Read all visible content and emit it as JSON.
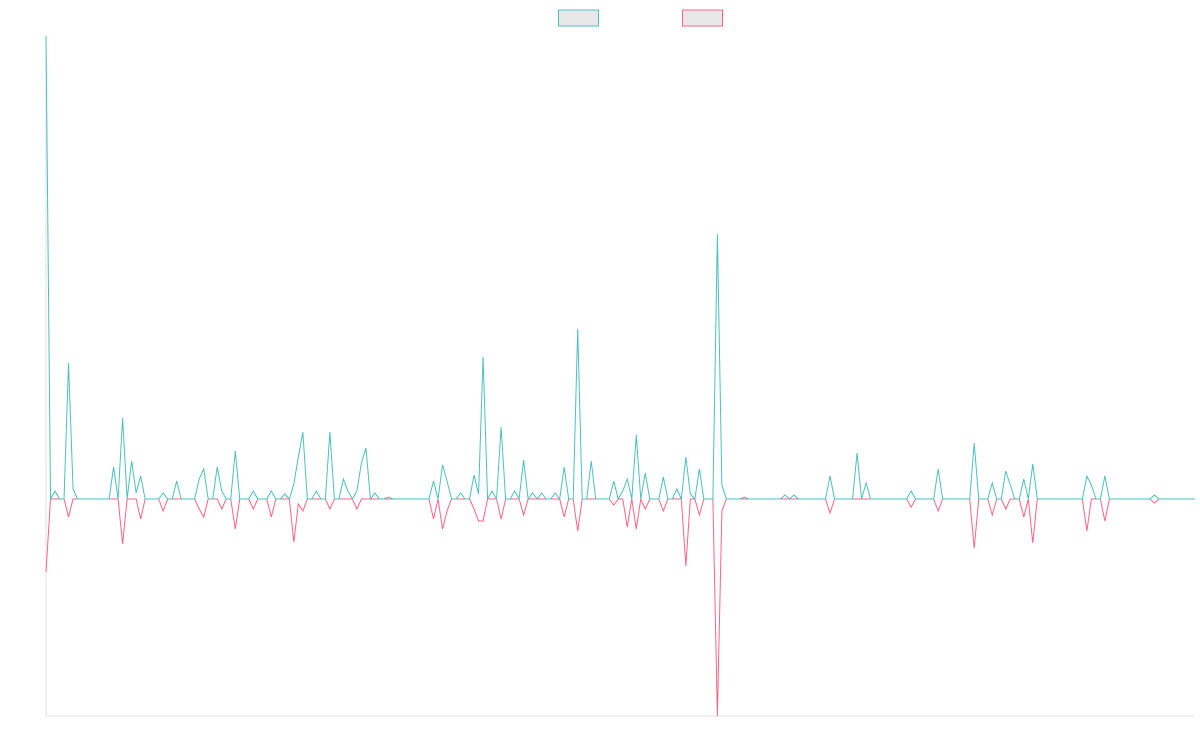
{
  "chart_data": {
    "type": "line",
    "ylim": [
      -217,
      463
    ],
    "legend": "top",
    "series": [
      {
        "color": "#4bc0c0",
        "values": [
          463,
          0,
          8,
          0,
          0,
          136,
          10,
          0,
          0,
          0,
          0,
          0,
          0,
          0,
          0,
          32,
          0,
          81,
          0,
          38,
          6,
          23,
          0,
          0,
          0,
          0,
          6,
          0,
          0,
          18,
          0,
          0,
          0,
          0,
          20,
          30,
          0,
          0,
          32,
          8,
          0,
          0,
          48,
          0,
          0,
          0,
          8,
          0,
          0,
          0,
          8,
          0,
          0,
          5,
          0,
          15,
          42,
          67,
          0,
          0,
          8,
          0,
          0,
          67,
          0,
          0,
          20,
          8,
          0,
          8,
          36,
          51,
          0,
          6,
          0,
          0,
          2,
          0,
          0,
          0,
          0,
          0,
          0,
          0,
          0,
          0,
          18,
          0,
          34,
          18,
          0,
          0,
          6,
          0,
          0,
          24,
          5,
          142,
          0,
          8,
          0,
          72,
          0,
          0,
          8,
          0,
          39,
          0,
          6,
          0,
          6,
          0,
          0,
          6,
          0,
          32,
          0,
          0,
          170,
          0,
          0,
          38,
          0,
          0,
          0,
          0,
          18,
          0,
          8,
          20,
          0,
          64,
          0,
          26,
          0,
          0,
          0,
          22,
          0,
          0,
          10,
          0,
          42,
          5,
          0,
          30,
          0,
          0,
          0,
          265,
          14,
          0,
          0,
          0,
          0,
          2,
          0,
          0,
          0,
          0,
          0,
          0,
          0,
          0,
          4,
          0,
          4,
          0,
          0,
          0,
          0,
          0,
          0,
          0,
          23,
          0,
          0,
          0,
          0,
          0,
          46,
          0,
          16,
          0,
          0,
          0,
          0,
          0,
          0,
          0,
          0,
          0,
          8,
          0,
          0,
          0,
          0,
          0,
          30,
          0,
          0,
          0,
          0,
          0,
          0,
          0,
          56,
          0,
          0,
          0,
          16,
          0,
          0,
          28,
          14,
          0,
          0,
          20,
          0,
          35,
          0,
          0,
          0,
          0,
          0,
          0,
          0,
          0,
          0,
          0,
          0,
          23,
          14,
          0,
          0,
          23,
          0,
          0,
          0,
          0,
          0,
          0,
          0,
          0,
          0,
          0,
          4,
          0,
          0,
          0,
          0,
          0,
          0,
          0,
          0,
          0
        ]
      },
      {
        "color": "#ff6384",
        "values": [
          -73,
          0,
          0,
          0,
          0,
          -18,
          0,
          0,
          0,
          0,
          0,
          0,
          0,
          0,
          0,
          0,
          0,
          -45,
          0,
          0,
          0,
          -20,
          0,
          0,
          0,
          0,
          -12,
          0,
          0,
          0,
          0,
          0,
          0,
          0,
          -10,
          -18,
          0,
          0,
          0,
          -10,
          0,
          0,
          -30,
          0,
          0,
          0,
          -10,
          0,
          0,
          0,
          -18,
          0,
          0,
          0,
          0,
          -43,
          -5,
          -12,
          0,
          0,
          0,
          0,
          0,
          -10,
          0,
          0,
          0,
          0,
          0,
          -10,
          0,
          0,
          0,
          0,
          0,
          0,
          0,
          0,
          0,
          0,
          0,
          0,
          0,
          0,
          0,
          0,
          -20,
          0,
          -30,
          -12,
          0,
          0,
          0,
          0,
          0,
          -10,
          -22,
          -22,
          0,
          0,
          0,
          -20,
          0,
          0,
          0,
          0,
          -16,
          0,
          0,
          0,
          0,
          0,
          0,
          0,
          0,
          -18,
          0,
          0,
          -32,
          0,
          0,
          0,
          0,
          0,
          0,
          0,
          -6,
          0,
          0,
          -28,
          0,
          -30,
          0,
          -10,
          0,
          0,
          0,
          -12,
          0,
          0,
          0,
          0,
          -67,
          0,
          0,
          -16,
          0,
          0,
          0,
          -217,
          -12,
          0,
          0,
          0,
          0,
          0,
          0,
          0,
          0,
          0,
          0,
          0,
          0,
          0,
          0,
          0,
          0,
          0,
          0,
          0,
          0,
          0,
          0,
          0,
          -14,
          0,
          0,
          0,
          0,
          0,
          0,
          0,
          0,
          0,
          0,
          0,
          0,
          0,
          0,
          0,
          0,
          0,
          -8,
          0,
          0,
          0,
          0,
          0,
          -12,
          0,
          0,
          0,
          0,
          0,
          0,
          0,
          -49,
          0,
          0,
          0,
          -16,
          0,
          0,
          -10,
          0,
          0,
          0,
          -18,
          0,
          -44,
          0,
          0,
          0,
          0,
          0,
          0,
          0,
          0,
          0,
          0,
          0,
          -32,
          0,
          0,
          0,
          -22,
          0,
          0,
          0,
          0,
          0,
          0,
          0,
          0,
          0,
          0,
          -4,
          0,
          0,
          0,
          0,
          0,
          0,
          0,
          0,
          0
        ]
      }
    ]
  }
}
